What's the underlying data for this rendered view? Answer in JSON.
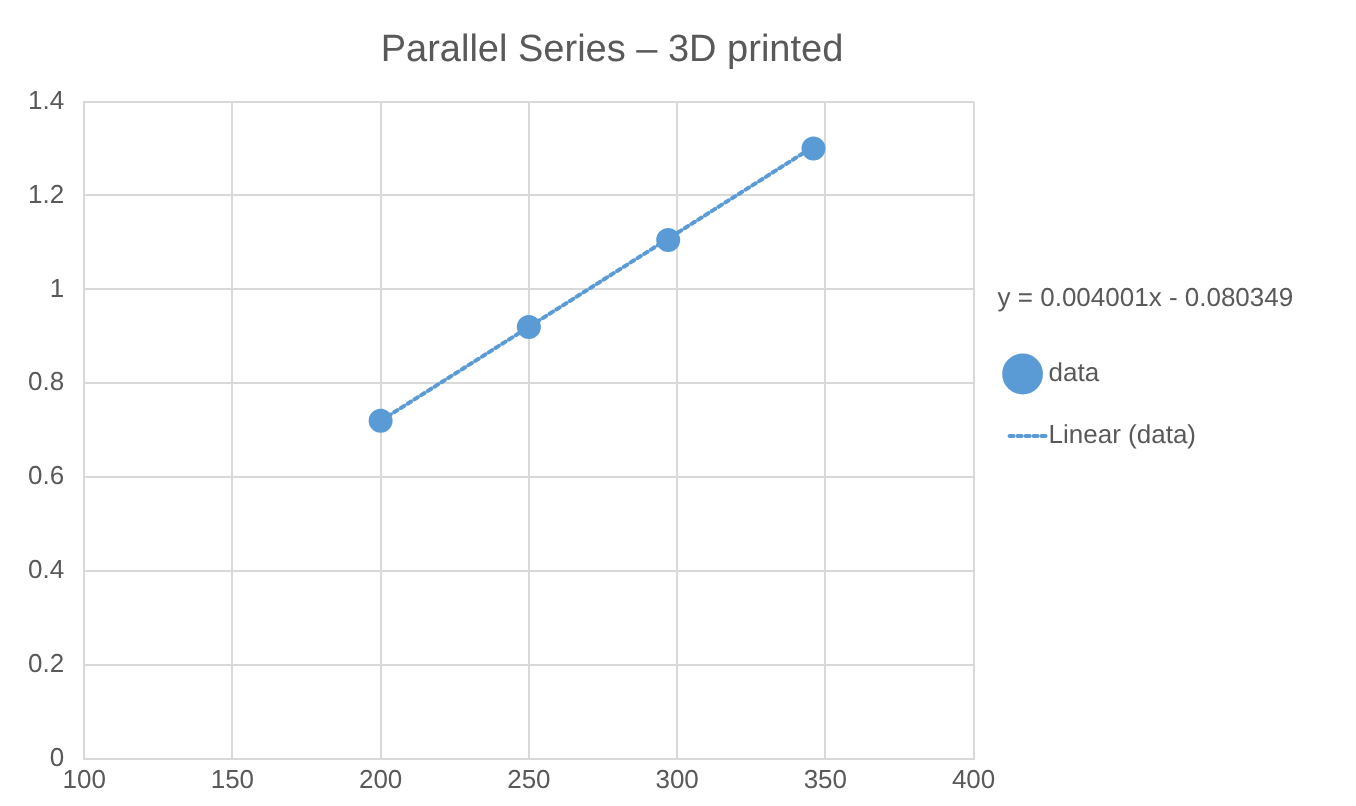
{
  "chart_data": {
    "type": "scatter",
    "title": "Parallel Series – 3D printed",
    "series": [
      {
        "name": "data",
        "type": "scatter",
        "color": "#5b9bd5",
        "marker": "circle",
        "x": [
          200,
          250,
          297,
          346
        ],
        "values": [
          0.72,
          0.92,
          1.105,
          1.3
        ]
      },
      {
        "name": "Linear (data)",
        "type": "line",
        "color": "#5b9bd5",
        "marker": "none",
        "line_style": "dotted",
        "x": [
          200,
          346
        ],
        "values": [
          0.72,
          1.304
        ]
      }
    ],
    "xlim": [
      100,
      400
    ],
    "xticks": [
      100,
      150,
      200,
      250,
      300,
      350,
      400
    ],
    "ylim": [
      0,
      1.4
    ],
    "yticks": [
      0,
      0.2,
      0.4,
      0.6,
      0.8,
      1,
      1.2,
      1.4
    ],
    "grid": true,
    "legend": "right",
    "annotations": [
      "y = 0.004001x - 0.080349"
    ]
  }
}
